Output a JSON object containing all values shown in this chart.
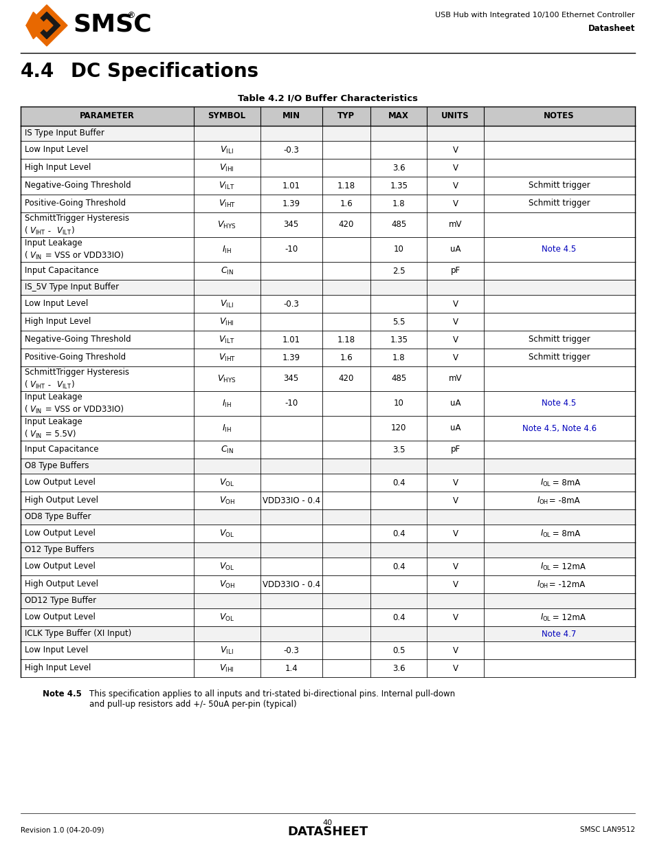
{
  "page_title_right": "USB Hub with Integrated 10/100 Ethernet Controller",
  "page_subtitle_right": "Datasheet",
  "section": "4.4",
  "section_title": "DC Specifications",
  "table_title": "Table 4.2 I/O Buffer Characteristics",
  "col_headers": [
    "PARAMETER",
    "SYMBOL",
    "MIN",
    "TYP",
    "MAX",
    "UNITS",
    "NOTES"
  ],
  "col_props": [
    0.2815,
    0.1085,
    0.1005,
    0.079,
    0.092,
    0.092,
    0.246
  ],
  "rows": [
    {
      "param": "IS Type Input Buffer",
      "symbol": "",
      "min": "",
      "typ": "",
      "max": "",
      "units": "",
      "notes": "",
      "notes_blue": false,
      "is_section": true
    },
    {
      "param": "Low Input Level",
      "symbol": "V_ILI",
      "min": "-0.3",
      "typ": "",
      "max": "",
      "units": "V",
      "notes": "",
      "notes_blue": false,
      "is_section": false
    },
    {
      "param": "High Input Level",
      "symbol": "V_IHI",
      "min": "",
      "typ": "",
      "max": "3.6",
      "units": "V",
      "notes": "",
      "notes_blue": false,
      "is_section": false
    },
    {
      "param": "Negative-Going Threshold",
      "symbol": "V_ILT",
      "min": "1.01",
      "typ": "1.18",
      "max": "1.35",
      "units": "V",
      "notes": "Schmitt trigger",
      "notes_blue": false,
      "is_section": false
    },
    {
      "param": "Positive-Going Threshold",
      "symbol": "V_IHT",
      "min": "1.39",
      "typ": "1.6",
      "max": "1.8",
      "units": "V",
      "notes": "Schmitt trigger",
      "notes_blue": false,
      "is_section": false
    },
    {
      "param": "SchmittTrigger Hysteresis\n(VIHT - VILT)",
      "symbol": "V_HYS",
      "min": "345",
      "typ": "420",
      "max": "485",
      "units": "mV",
      "notes": "",
      "notes_blue": false,
      "is_section": false
    },
    {
      "param": "Input Leakage\n(VIN = VSS or VDD33IO)",
      "symbol": "I_IH",
      "min": "-10",
      "typ": "",
      "max": "10",
      "units": "uA",
      "notes": "Note 4.5",
      "notes_blue": true,
      "is_section": false
    },
    {
      "param": "Input Capacitance",
      "symbol": "C_IN",
      "min": "",
      "typ": "",
      "max": "2.5",
      "units": "pF",
      "notes": "",
      "notes_blue": false,
      "is_section": false
    },
    {
      "param": "IS_5V Type Input Buffer",
      "symbol": "",
      "min": "",
      "typ": "",
      "max": "",
      "units": "",
      "notes": "",
      "notes_blue": false,
      "is_section": true
    },
    {
      "param": "Low Input Level",
      "symbol": "V_ILI",
      "min": "-0.3",
      "typ": "",
      "max": "",
      "units": "V",
      "notes": "",
      "notes_blue": false,
      "is_section": false
    },
    {
      "param": "High Input Level",
      "symbol": "V_IHI",
      "min": "",
      "typ": "",
      "max": "5.5",
      "units": "V",
      "notes": "",
      "notes_blue": false,
      "is_section": false
    },
    {
      "param": "Negative-Going Threshold",
      "symbol": "V_ILT",
      "min": "1.01",
      "typ": "1.18",
      "max": "1.35",
      "units": "V",
      "notes": "Schmitt trigger",
      "notes_blue": false,
      "is_section": false
    },
    {
      "param": "Positive-Going Threshold",
      "symbol": "V_IHT",
      "min": "1.39",
      "typ": "1.6",
      "max": "1.8",
      "units": "V",
      "notes": "Schmitt trigger",
      "notes_blue": false,
      "is_section": false
    },
    {
      "param": "SchmittTrigger Hysteresis\n(VIHT - VILT)",
      "symbol": "V_HYS",
      "min": "345",
      "typ": "420",
      "max": "485",
      "units": "mV",
      "notes": "",
      "notes_blue": false,
      "is_section": false
    },
    {
      "param": "Input Leakage\n(VIN = VSS or VDD33IO)",
      "symbol": "I_IH",
      "min": "-10",
      "typ": "",
      "max": "10",
      "units": "uA",
      "notes": "Note 4.5",
      "notes_blue": true,
      "is_section": false
    },
    {
      "param": "Input Leakage\n(VIN = 5.5V)",
      "symbol": "I_IH",
      "min": "",
      "typ": "",
      "max": "120",
      "units": "uA",
      "notes": "Note 4.5, Note 4.6",
      "notes_blue": true,
      "is_section": false
    },
    {
      "param": "Input Capacitance",
      "symbol": "C_IN",
      "min": "",
      "typ": "",
      "max": "3.5",
      "units": "pF",
      "notes": "",
      "notes_blue": false,
      "is_section": false
    },
    {
      "param": "O8 Type Buffers",
      "symbol": "",
      "min": "",
      "typ": "",
      "max": "",
      "units": "",
      "notes": "",
      "notes_blue": false,
      "is_section": true
    },
    {
      "param": "Low Output Level",
      "symbol": "V_OL",
      "min": "",
      "typ": "",
      "max": "0.4",
      "units": "V",
      "notes": "IOL = 8mA",
      "notes_blue": false,
      "is_section": false
    },
    {
      "param": "High Output Level",
      "symbol": "V_OH",
      "min": "VDD33IO - 0.4",
      "typ": "",
      "max": "",
      "units": "V",
      "notes": "IOH = -8mA",
      "notes_blue": false,
      "is_section": false
    },
    {
      "param": "OD8 Type Buffer",
      "symbol": "",
      "min": "",
      "typ": "",
      "max": "",
      "units": "",
      "notes": "",
      "notes_blue": false,
      "is_section": true
    },
    {
      "param": "Low Output Level",
      "symbol": "V_OL",
      "min": "",
      "typ": "",
      "max": "0.4",
      "units": "V",
      "notes": "IOL = 8mA",
      "notes_blue": false,
      "is_section": false
    },
    {
      "param": "O12 Type Buffers",
      "symbol": "",
      "min": "",
      "typ": "",
      "max": "",
      "units": "",
      "notes": "",
      "notes_blue": false,
      "is_section": true
    },
    {
      "param": "Low Output Level",
      "symbol": "V_OL",
      "min": "",
      "typ": "",
      "max": "0.4",
      "units": "V",
      "notes": "IOL = 12mA",
      "notes_blue": false,
      "is_section": false
    },
    {
      "param": "High Output Level",
      "symbol": "V_OH",
      "min": "VDD33IO - 0.4",
      "typ": "",
      "max": "",
      "units": "V",
      "notes": "IOH = -12mA",
      "notes_blue": false,
      "is_section": false
    },
    {
      "param": "OD12 Type Buffer",
      "symbol": "",
      "min": "",
      "typ": "",
      "max": "",
      "units": "",
      "notes": "",
      "notes_blue": false,
      "is_section": true
    },
    {
      "param": "Low Output Level",
      "symbol": "V_OL",
      "min": "",
      "typ": "",
      "max": "0.4",
      "units": "V",
      "notes": "IOL = 12mA",
      "notes_blue": false,
      "is_section": false
    },
    {
      "param": "ICLK Type Buffer (XI Input)",
      "symbol": "",
      "min": "",
      "typ": "",
      "max": "",
      "units": "",
      "notes": "Note 4.7",
      "notes_blue": true,
      "is_section": true
    },
    {
      "param": "Low Input Level",
      "symbol": "V_ILI",
      "min": "-0.3",
      "typ": "",
      "max": "0.5",
      "units": "V",
      "notes": "",
      "notes_blue": false,
      "is_section": false
    },
    {
      "param": "High Input Level",
      "symbol": "V_IHI",
      "min": "1.4",
      "typ": "",
      "max": "3.6",
      "units": "V",
      "notes": "",
      "notes_blue": false,
      "is_section": false
    }
  ],
  "note_bold": "Note 4.5",
  "note_text": "This specification applies to all inputs and tri-stated bi-directional pins. Internal pull-down\nand pull-up resistors add +/- 50uA per-pin (typical)",
  "footer_left": "Revision 1.0 (04-20-09)",
  "footer_center": "40",
  "footer_center2": "DATASHEET",
  "footer_right": "SMSC LAN9512",
  "bg_color": "#ffffff",
  "blue_color": "#0000bb"
}
